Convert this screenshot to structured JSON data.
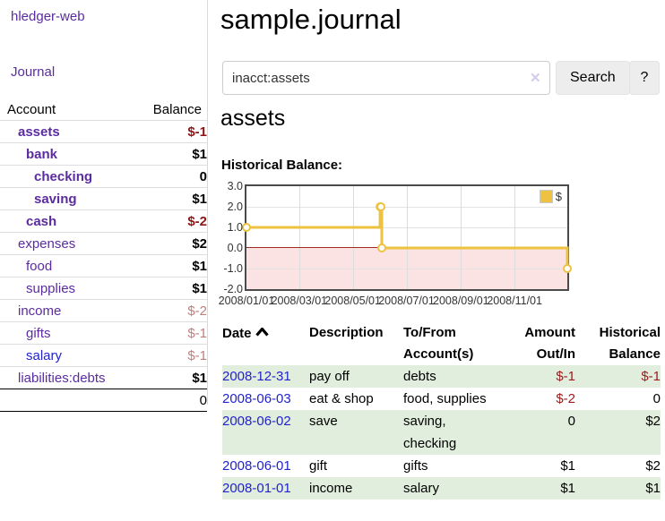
{
  "app": {
    "brand": "hledger-web",
    "nav_journal": "Journal"
  },
  "sidebar": {
    "account_header": "Account",
    "balance_header": "Balance",
    "rows": [
      {
        "account": "assets",
        "balance": "$-1",
        "indent": 0,
        "bold": true
      },
      {
        "account": "bank",
        "balance": "$1",
        "indent": 1,
        "bold": true
      },
      {
        "account": "checking",
        "balance": "0",
        "indent": 2,
        "bold": true
      },
      {
        "account": "saving",
        "balance": "$1",
        "indent": 2,
        "bold": true
      },
      {
        "account": "cash",
        "balance": "$-2",
        "indent": 1,
        "bold": true
      },
      {
        "account": "expenses",
        "balance": "$2",
        "indent": 0,
        "bold": false
      },
      {
        "account": "food",
        "balance": "$1",
        "indent": 1,
        "bold": false
      },
      {
        "account": "supplies",
        "balance": "$1",
        "indent": 1,
        "bold": false
      },
      {
        "account": "income",
        "balance": "$-2",
        "indent": 0,
        "bold": false
      },
      {
        "account": "gifts",
        "balance": "$-1",
        "indent": 1,
        "bold": false
      },
      {
        "account": "salary",
        "balance": "$-1",
        "indent": 1,
        "bold": false,
        "link_style": "blue"
      },
      {
        "account": "liabilities:debts",
        "balance": "$1",
        "indent": 0,
        "bold": false
      }
    ],
    "total": "0"
  },
  "main": {
    "title": "sample.journal",
    "search": {
      "value": "inacct:assets",
      "clear_icon": "✕",
      "search_button": "Search",
      "help_button": "?"
    },
    "account_heading": "assets",
    "chart_heading": "Historical Balance:"
  },
  "chart_data": {
    "type": "line",
    "step": true,
    "legend": "$",
    "legend_position": "top-right",
    "xmin": "2008-01-01",
    "xmax": "2008-12-31",
    "ylim": [
      -2,
      3
    ],
    "grid": true,
    "line_color": "#edc240",
    "marker": "open-circle",
    "negative_region_fill": "#fbe3e3",
    "zero_line_color": "#a02a24",
    "yticks": [
      {
        "label": "3.0",
        "value": 3
      },
      {
        "label": "2.0",
        "value": 2
      },
      {
        "label": "1.0",
        "value": 1
      },
      {
        "label": "0.0",
        "value": 0
      },
      {
        "label": "-1.0",
        "value": -1
      },
      {
        "label": "-2.0",
        "value": -2
      }
    ],
    "xticks": [
      {
        "label": "2008/01/01",
        "date": "2008-01-01"
      },
      {
        "label": "2008/03/01",
        "date": "2008-03-01"
      },
      {
        "label": "2008/05/01",
        "date": "2008-05-01"
      },
      {
        "label": "2008/07/01",
        "date": "2008-07-01"
      },
      {
        "label": "2008/09/01",
        "date": "2008-09-01"
      },
      {
        "label": "2008/11/01",
        "date": "2008-11-01"
      }
    ],
    "points": [
      {
        "x": "2008-01-01",
        "y": 1
      },
      {
        "x": "2008-06-01",
        "y": 2
      },
      {
        "x": "2008-06-02",
        "y": 2
      },
      {
        "x": "2008-06-03",
        "y": 0
      },
      {
        "x": "2008-12-31",
        "y": -1
      }
    ]
  },
  "register": {
    "headers": {
      "date": "Date",
      "description": "Description",
      "tofrom": "To/From Account(s)",
      "amount": "Amount Out/In",
      "balance": "Historical Balance"
    },
    "rows": [
      {
        "date": "2008-12-31",
        "description": "pay off",
        "accounts": "debts",
        "amount": "$-1",
        "balance": "$-1"
      },
      {
        "date": "2008-06-03",
        "description": "eat & shop",
        "accounts": "food, supplies",
        "amount": "$-2",
        "balance": "0"
      },
      {
        "date": "2008-06-02",
        "description": "save",
        "accounts": "saving, checking",
        "amount": "0",
        "balance": "$2"
      },
      {
        "date": "2008-06-01",
        "description": "gift",
        "accounts": "gifts",
        "amount": "$1",
        "balance": "$2"
      },
      {
        "date": "2008-01-01",
        "description": "income",
        "accounts": "salary",
        "amount": "$1",
        "balance": "$1"
      }
    ]
  }
}
